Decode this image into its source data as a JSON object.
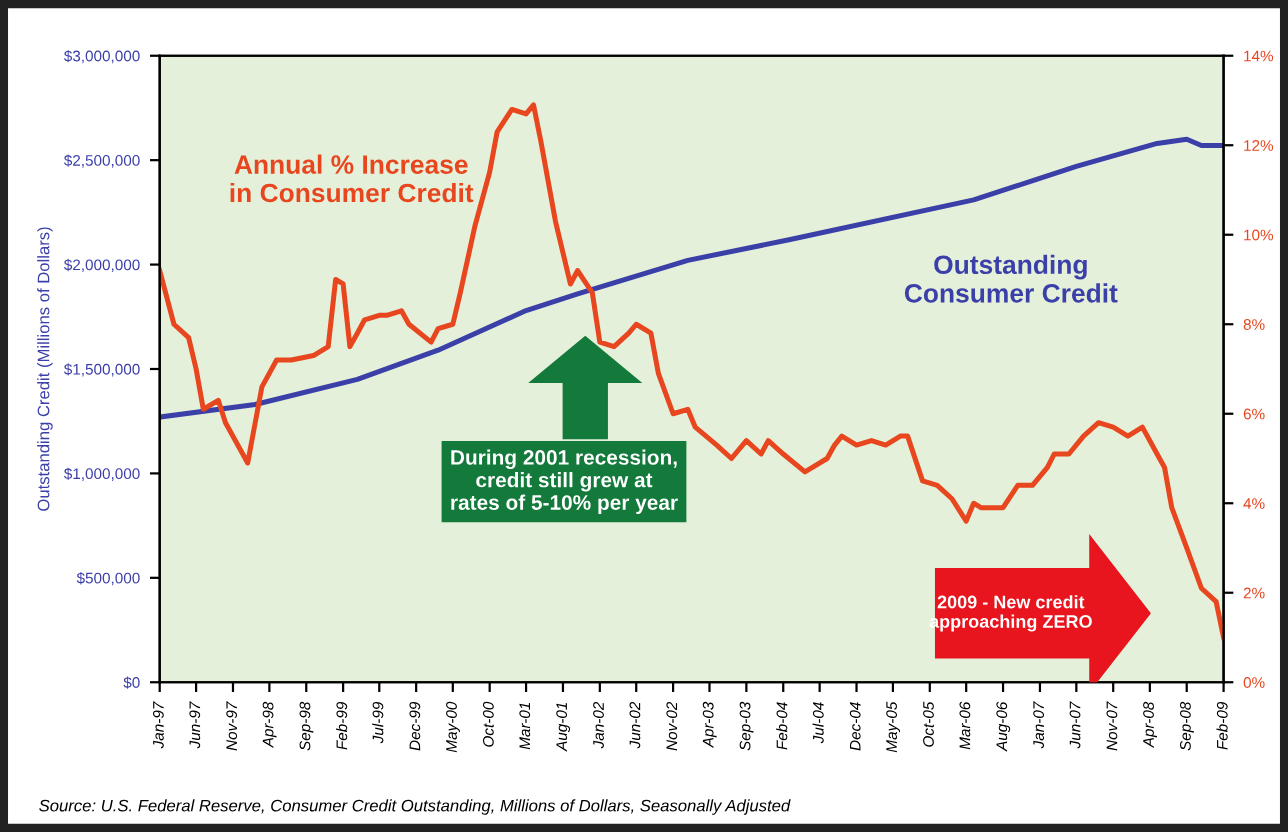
{
  "chart_data": {
    "type": "line",
    "ylabel": "Outstanding Credit (Millions of Dollars)",
    "annotations": [
      "During 2001 recession, credit still grew at rates of 5-10% per year",
      "2009 - New credit approaching ZERO",
      "Source: U.S. Federal Reserve, Consumer Credit Outstanding, Millions of Dollars, Seasonally Adjusted"
    ],
    "series": [
      {
        "name": "Outstanding Consumer Credit",
        "color": "#3b3fa8",
        "axis": "y",
        "x": [
          "1997-01",
          "1998-02",
          "1999-04",
          "2000-03",
          "2001-03",
          "2001-10",
          "2003-01",
          "2004-03",
          "2006-04",
          "2007-06",
          "2008-05",
          "2008-09",
          "2008-11",
          "2009-02"
        ],
        "values": [
          1270000,
          1330000,
          1450000,
          1590000,
          1780000,
          1860000,
          2020000,
          2120000,
          2310000,
          2470000,
          2580000,
          2600000,
          2570000,
          2570000
        ]
      },
      {
        "name": "Annual % Increase in Consumer Credit",
        "color": "#e8461e",
        "axis": "y2",
        "x": [
          "1997-01",
          "1997-03",
          "1997-05",
          "1997-06",
          "1997-07",
          "1997-09",
          "1997-10",
          "1998-01",
          "1998-03",
          "1998-05",
          "1998-07",
          "1998-10",
          "1998-12",
          "1999-01",
          "1999-02",
          "1999-03",
          "1999-04",
          "1999-05",
          "1999-07",
          "1999-08",
          "1999-10",
          "1999-11",
          "2000-02",
          "2000-03",
          "2000-05",
          "2000-06",
          "2000-08",
          "2000-10",
          "2000-11",
          "2001-01",
          "2001-03",
          "2001-04",
          "2001-05",
          "2001-07",
          "2001-09",
          "2001-10",
          "2001-12",
          "2002-01",
          "2002-03",
          "2002-05",
          "2002-06",
          "2002-08",
          "2002-09",
          "2002-11",
          "2003-01",
          "2003-02",
          "2003-05",
          "2003-07",
          "2003-09",
          "2003-11",
          "2003-12",
          "2004-02",
          "2004-05",
          "2004-08",
          "2004-09",
          "2004-10",
          "2004-12",
          "2005-02",
          "2005-04",
          "2005-06",
          "2005-07",
          "2005-09",
          "2005-11",
          "2006-01",
          "2006-03",
          "2006-04",
          "2006-05",
          "2006-08",
          "2006-10",
          "2006-12",
          "2007-02",
          "2007-03",
          "2007-05",
          "2007-07",
          "2007-09",
          "2007-11",
          "2008-01",
          "2008-03",
          "2008-05",
          "2008-06",
          "2008-07",
          "2008-09",
          "2008-11",
          "2009-01",
          "2009-02"
        ],
        "values": [
          9.2,
          8.0,
          7.7,
          7.0,
          6.1,
          6.3,
          5.8,
          4.9,
          6.6,
          7.2,
          7.2,
          7.3,
          7.5,
          9.0,
          8.9,
          7.5,
          7.8,
          8.1,
          8.2,
          8.2,
          8.3,
          8.0,
          7.6,
          7.9,
          8.0,
          8.7,
          10.2,
          11.4,
          12.3,
          12.8,
          12.7,
          12.9,
          12.1,
          10.3,
          8.9,
          9.2,
          8.7,
          7.6,
          7.5,
          7.8,
          8.0,
          7.8,
          6.9,
          6.0,
          6.1,
          5.7,
          5.3,
          5.0,
          5.4,
          5.1,
          5.4,
          5.1,
          4.7,
          5.0,
          5.3,
          5.5,
          5.3,
          5.4,
          5.3,
          5.5,
          5.5,
          4.5,
          4.4,
          4.1,
          3.6,
          4.0,
          3.9,
          3.9,
          4.4,
          4.4,
          4.8,
          5.1,
          5.1,
          5.5,
          5.8,
          5.7,
          5.5,
          5.7,
          5.1,
          4.8,
          3.9,
          3.0,
          2.1,
          1.8,
          1.0
        ]
      }
    ],
    "xlim": [
      "1997-01",
      "2009-02"
    ],
    "xticks": [
      {
        "value": "1997-01",
        "label": "Jan-97"
      },
      {
        "value": "1997-06",
        "label": "Jun-97"
      },
      {
        "value": "1997-11",
        "label": "Nov-97"
      },
      {
        "value": "1998-04",
        "label": "Apr-98"
      },
      {
        "value": "1998-09",
        "label": "Sep-98"
      },
      {
        "value": "1999-02",
        "label": "Feb-99"
      },
      {
        "value": "1999-07",
        "label": "Jul-99"
      },
      {
        "value": "1999-12",
        "label": "Dec-99"
      },
      {
        "value": "2000-05",
        "label": "May-00"
      },
      {
        "value": "2000-10",
        "label": "Oct-00"
      },
      {
        "value": "2001-03",
        "label": "Mar-01"
      },
      {
        "value": "2001-08",
        "label": "Aug-01"
      },
      {
        "value": "2002-01",
        "label": "Jan-02"
      },
      {
        "value": "2002-06",
        "label": "Jun-02"
      },
      {
        "value": "2002-11",
        "label": "Nov-02"
      },
      {
        "value": "2003-04",
        "label": "Apr-03"
      },
      {
        "value": "2003-09",
        "label": "Sep-03"
      },
      {
        "value": "2004-02",
        "label": "Feb-04"
      },
      {
        "value": "2004-07",
        "label": "Jul-04"
      },
      {
        "value": "2004-12",
        "label": "Dec-04"
      },
      {
        "value": "2005-05",
        "label": "May-05"
      },
      {
        "value": "2005-10",
        "label": "Oct-05"
      },
      {
        "value": "2006-03",
        "label": "Mar-06"
      },
      {
        "value": "2006-08",
        "label": "Aug-06"
      },
      {
        "value": "2007-01",
        "label": "Jan-07"
      },
      {
        "value": "2007-06",
        "label": "Jun-07"
      },
      {
        "value": "2007-11",
        "label": "Nov-07"
      },
      {
        "value": "2008-04",
        "label": "Apr-08"
      },
      {
        "value": "2008-09",
        "label": "Sep-08"
      },
      {
        "value": "2009-02",
        "label": "Feb-09"
      }
    ],
    "ylim": [
      0,
      3000000
    ],
    "yticks": [
      {
        "value": 0,
        "label": "$0"
      },
      {
        "value": 500000,
        "label": "$500,000"
      },
      {
        "value": 1000000,
        "label": "$1,000,000"
      },
      {
        "value": 1500000,
        "label": "$1,500,000"
      },
      {
        "value": 2000000,
        "label": "$2,000,000"
      },
      {
        "value": 2500000,
        "label": "$2,500,000"
      },
      {
        "value": 3000000,
        "label": "$3,000,000"
      }
    ],
    "y2lim": [
      0,
      14
    ],
    "y2ticks": [
      {
        "value": 0,
        "label": "0%"
      },
      {
        "value": 2,
        "label": "2%"
      },
      {
        "value": 4,
        "label": "4%"
      },
      {
        "value": 6,
        "label": "6%"
      },
      {
        "value": 8,
        "label": "8%"
      },
      {
        "value": 10,
        "label": "10%"
      },
      {
        "value": 12,
        "label": "12%"
      },
      {
        "value": 14,
        "label": "14%"
      }
    ],
    "grid": false,
    "legend": false,
    "marker": "none",
    "line_style": "solid"
  }
}
